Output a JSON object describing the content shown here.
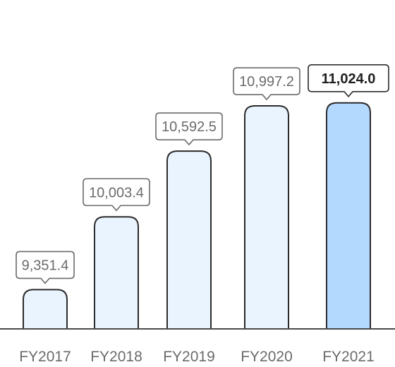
{
  "chart_data": {
    "type": "bar",
    "categories": [
      "FY2017",
      "FY2018",
      "FY2019",
      "FY2020",
      "FY2021"
    ],
    "values": [
      9351.4,
      10003.4,
      10592.5,
      10997.2,
      11024.0
    ],
    "value_labels": [
      "9,351.4",
      "10,003.4",
      "10,592.5",
      "10,997.2",
      "11,024.0"
    ],
    "highlight_index": 4,
    "title": "",
    "xlabel": "",
    "ylabel": "",
    "grid": false,
    "colors": {
      "bar_fill": "#eaf4ff",
      "bar_highlight_fill": "#b3d9ff",
      "bar_stroke": "#2b2b2b",
      "baseline": "#4a4a4a",
      "callout_border": "#6b6b6b",
      "callout_highlight_border": "#2b2b2b",
      "label_text": "#6b6b6b",
      "label_highlight_text": "#1f1f1f"
    }
  }
}
